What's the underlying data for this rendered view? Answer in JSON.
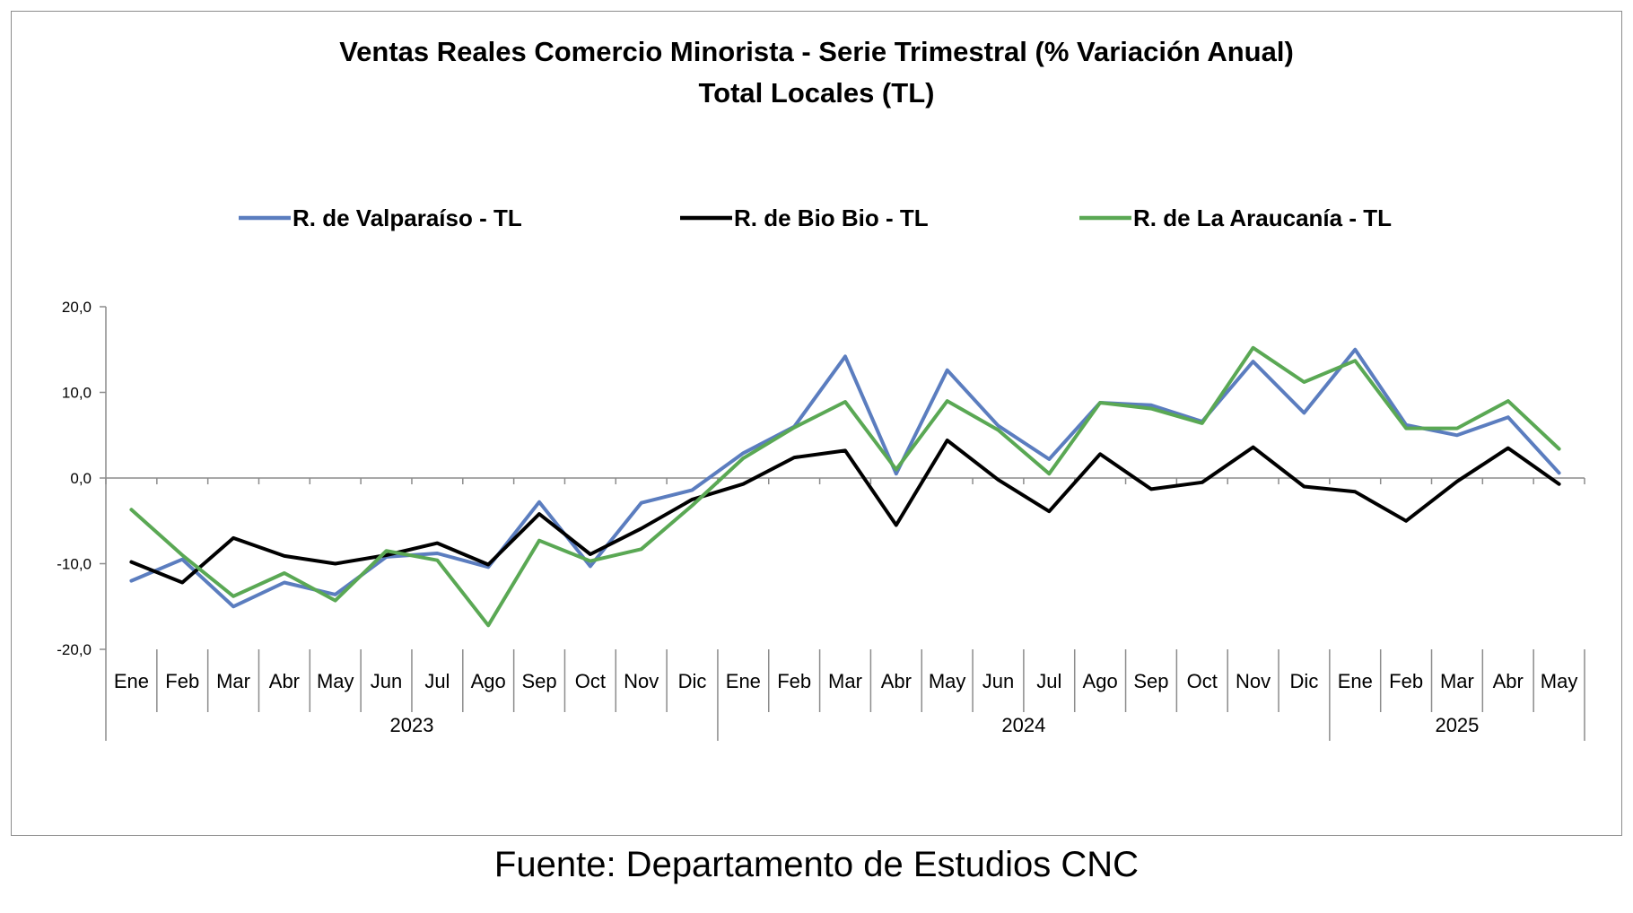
{
  "chart_data": {
    "type": "line",
    "title": "Ventas Reales Comercio Minorista - Serie Trimestral (% Variación Anual)",
    "subtitle": "Total Locales (TL)",
    "categories": [
      "Ene",
      "Feb",
      "Mar",
      "Abr",
      "May",
      "Jun",
      "Jul",
      "Ago",
      "Sep",
      "Oct",
      "Nov",
      "Dic",
      "Ene",
      "Feb",
      "Mar",
      "Abr",
      "May",
      "Jun",
      "Jul",
      "Ago",
      "Sep",
      "Oct",
      "Nov",
      "Dic",
      "Ene",
      "Feb",
      "Mar",
      "Abr",
      "May"
    ],
    "year_groups": [
      {
        "label": "2023",
        "count": 12
      },
      {
        "label": "2024",
        "count": 12
      },
      {
        "label": "2025",
        "count": 5
      }
    ],
    "ylim": [
      -20,
      20
    ],
    "yticks": [
      20,
      10,
      0,
      -10,
      -20
    ],
    "ytick_labels": [
      "20,0",
      "10,0",
      "0,0",
      "-10,0",
      "-20,0"
    ],
    "grid": false,
    "legend_position": "top",
    "series": [
      {
        "name": "R. de Valparaíso - TL",
        "color": "#5b7dbf",
        "values": [
          -12.0,
          -9.5,
          -15.0,
          -12.2,
          -13.6,
          -9.2,
          -8.8,
          -10.4,
          -2.8,
          -10.3,
          -2.9,
          -1.4,
          2.9,
          6.0,
          14.2,
          0.5,
          12.6,
          6.1,
          2.2,
          8.8,
          8.5,
          6.6,
          13.6,
          7.6,
          15.0,
          6.2,
          5.0,
          7.1,
          0.6
        ]
      },
      {
        "name": "R. de Bio Bio - TL",
        "color": "#000000",
        "values": [
          -9.8,
          -12.2,
          -7.0,
          -9.1,
          -10.0,
          -9.0,
          -7.6,
          -10.1,
          -4.2,
          -8.9,
          -5.9,
          -2.5,
          -0.7,
          2.4,
          3.2,
          -5.5,
          4.4,
          -0.2,
          -3.9,
          2.8,
          -1.3,
          -0.5,
          3.6,
          -1.0,
          -1.6,
          -5.0,
          -0.4,
          3.5,
          -0.7
        ]
      },
      {
        "name": "R. de La Araucanía - TL",
        "color": "#5aa854",
        "values": [
          -3.7,
          -9.0,
          -13.8,
          -11.1,
          -14.3,
          -8.5,
          -9.6,
          -17.2,
          -7.3,
          -9.7,
          -8.3,
          -3.2,
          2.3,
          5.9,
          8.9,
          1.0,
          9.0,
          5.6,
          0.5,
          8.8,
          8.1,
          6.4,
          15.2,
          11.2,
          13.7,
          5.8,
          5.8,
          9.0,
          3.4
        ]
      }
    ]
  },
  "source_note": "Fuente: Departamento de Estudios CNC"
}
